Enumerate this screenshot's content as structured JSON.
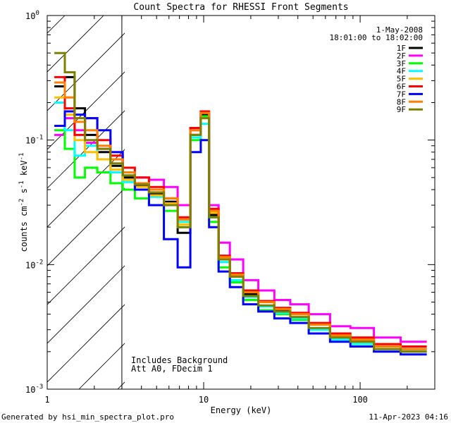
{
  "chart_data": {
    "type": "line",
    "title": "Count Spectra for RHESSI Front Segments",
    "xlabel": "Energy (keV)",
    "ylabel_base": "counts cm",
    "ylabel_parts": [
      "counts cm",
      "-2",
      " s",
      "-1",
      " keV",
      "-1"
    ],
    "xscale": "log",
    "yscale": "log",
    "xlim": [
      1,
      300
    ],
    "ylim": [
      0.001,
      1
    ],
    "x_ticks": [
      {
        "value": 1,
        "label": "1"
      },
      {
        "value": 10,
        "label": "10"
      },
      {
        "value": 100,
        "label": "100"
      }
    ],
    "y_ticks": [
      {
        "value": 1,
        "base": "10",
        "exp": "0"
      },
      {
        "value": 0.1,
        "base": "10",
        "exp": "-1"
      },
      {
        "value": 0.01,
        "base": "10",
        "exp": "-2"
      },
      {
        "value": 0.001,
        "base": "10",
        "exp": "-3"
      }
    ],
    "attenuator_edge_kev": 3,
    "annotation_date": "1-May-2008",
    "annotation_time": "18:01:00 to 18:02:00",
    "note_lines": [
      "Includes Background",
      "Att A0, FDecim 1"
    ],
    "series": [
      {
        "name": "1F",
        "color": "#000000",
        "values": [
          0.27,
          0.32,
          0.18,
          0.11,
          0.08,
          0.062,
          0.05,
          0.043,
          0.037,
          0.032,
          0.018,
          0.11,
          0.16,
          0.025,
          0.011,
          0.0085,
          0.0058,
          0.005,
          0.0043,
          0.004,
          0.0033,
          0.0027,
          0.0025,
          0.0022,
          0.0021
        ]
      },
      {
        "name": "2F",
        "color": "#ff00ff",
        "values": [
          0.11,
          0.15,
          0.12,
          0.095,
          0.085,
          0.07,
          0.055,
          0.05,
          0.048,
          0.042,
          0.03,
          0.12,
          0.165,
          0.03,
          0.015,
          0.011,
          0.0075,
          0.0062,
          0.0052,
          0.0048,
          0.004,
          0.0032,
          0.0031,
          0.0026,
          0.0024
        ]
      },
      {
        "name": "3F",
        "color": "#00ff00",
        "values": [
          0.12,
          0.085,
          0.05,
          0.06,
          0.055,
          0.045,
          0.04,
          0.034,
          0.03,
          0.027,
          0.02,
          0.1,
          0.155,
          0.022,
          0.0095,
          0.0072,
          0.0052,
          0.0043,
          0.004,
          0.0036,
          0.003,
          0.0026,
          0.0024,
          0.0021,
          0.002
        ]
      },
      {
        "name": "4F",
        "color": "#00ffff",
        "values": [
          0.2,
          0.12,
          0.075,
          0.09,
          0.07,
          0.055,
          0.046,
          0.04,
          0.035,
          0.03,
          0.022,
          0.105,
          0.135,
          0.024,
          0.0105,
          0.0075,
          0.0055,
          0.0046,
          0.0041,
          0.0037,
          0.003,
          0.0025,
          0.0023,
          0.0021,
          0.002
        ]
      },
      {
        "name": "5F",
        "color": "#ffbf00",
        "values": [
          0.22,
          0.16,
          0.1,
          0.08,
          0.07,
          0.058,
          0.048,
          0.042,
          0.036,
          0.031,
          0.021,
          0.11,
          0.15,
          0.026,
          0.0112,
          0.0082,
          0.006,
          0.005,
          0.0044,
          0.004,
          0.0033,
          0.0028,
          0.0026,
          0.0023,
          0.0022
        ]
      },
      {
        "name": "6F",
        "color": "#ff0000",
        "values": [
          0.32,
          0.18,
          0.11,
          0.15,
          0.1,
          0.075,
          0.06,
          0.05,
          0.042,
          0.034,
          0.024,
          0.125,
          0.17,
          0.028,
          0.0118,
          0.0085,
          0.0062,
          0.0051,
          0.0045,
          0.0041,
          0.0034,
          0.0028,
          0.0026,
          0.0023,
          0.0022
        ]
      },
      {
        "name": "7F",
        "color": "#0000ff",
        "values": [
          0.13,
          0.17,
          0.16,
          0.15,
          0.12,
          0.08,
          0.055,
          0.04,
          0.03,
          0.016,
          0.0095,
          0.08,
          0.1,
          0.02,
          0.0088,
          0.0066,
          0.0048,
          0.0042,
          0.0037,
          0.0034,
          0.0028,
          0.0024,
          0.0022,
          0.002,
          0.0019
        ]
      },
      {
        "name": "8F",
        "color": "#ff7f00",
        "values": [
          0.29,
          0.22,
          0.14,
          0.12,
          0.09,
          0.07,
          0.055,
          0.045,
          0.04,
          0.034,
          0.023,
          0.12,
          0.165,
          0.027,
          0.0115,
          0.0083,
          0.006,
          0.005,
          0.0044,
          0.004,
          0.0033,
          0.0027,
          0.0025,
          0.0022,
          0.0021
        ]
      },
      {
        "name": "9F",
        "color": "#7f7f00",
        "values": [
          0.5,
          0.35,
          0.15,
          0.1,
          0.085,
          0.065,
          0.052,
          0.044,
          0.038,
          0.03,
          0.02,
          0.11,
          0.15,
          0.024,
          0.011,
          0.008,
          0.0056,
          0.0047,
          0.0042,
          0.0038,
          0.0031,
          0.0026,
          0.0024,
          0.0021,
          0.002
        ]
      }
    ],
    "x": [
      1.2,
      1.4,
      1.6,
      1.9,
      2.3,
      2.8,
      3.3,
      4.0,
      5.0,
      6.2,
      7.5,
      9.0,
      10.2,
      11.5,
      13.5,
      16.0,
      20.0,
      25.0,
      32.0,
      40.0,
      55.0,
      75.0,
      100.0,
      150.0,
      220.0
    ]
  },
  "footer": {
    "generated_by": "Generated by hsi_min_spectra_plot.pro",
    "timestamp": "11-Apr-2023 04:16"
  }
}
